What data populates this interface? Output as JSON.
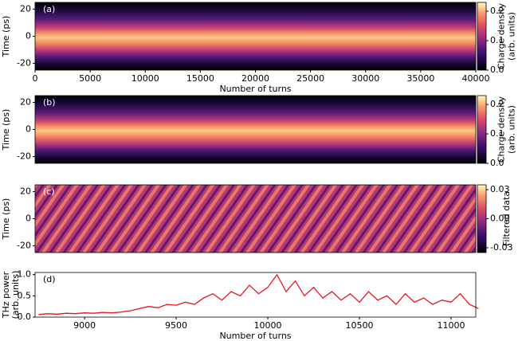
{
  "chart_data": [
    {
      "type": "heatmap",
      "panel_label": "(a)",
      "xlabel": "Number of turns",
      "ylabel": [
        "Time (ps)"
      ],
      "xlim": [
        0,
        40000
      ],
      "xticks": [
        0,
        5000,
        10000,
        15000,
        20000,
        25000,
        30000,
        35000,
        40000
      ],
      "ylim": [
        -25,
        25
      ],
      "yticks": [
        -20,
        0,
        20
      ],
      "colorbar": {
        "label": [
          "Charge density",
          "(arb. units)"
        ],
        "lim": [
          0,
          0.23
        ],
        "ticks": [
          {
            "value": 0,
            "label": "0.0"
          },
          0.1,
          0.2
        ]
      }
    },
    {
      "type": "heatmap",
      "panel_label": "(b)",
      "ylabel": [
        "Time (ps)"
      ],
      "ylim": [
        -25,
        25
      ],
      "yticks": [
        -20,
        0,
        20
      ],
      "colorbar": {
        "label": [
          "Charge density",
          "(arb. units)"
        ],
        "lim": [
          0,
          0.23
        ],
        "ticks": [
          {
            "value": 0,
            "label": "0.0"
          },
          0.1,
          0.2
        ]
      }
    },
    {
      "type": "heatmap",
      "panel_label": "(c)",
      "ylabel": [
        "Time (ps)"
      ],
      "ylim": [
        -25,
        25
      ],
      "yticks": [
        -20,
        0,
        20
      ],
      "colorbar": {
        "label": [
          "Filtered data"
        ],
        "lim": [
          -0.035,
          0.035
        ],
        "ticks": [
          -0.03,
          {
            "value": 0,
            "label": "0.00"
          },
          0.03
        ]
      }
    },
    {
      "type": "line",
      "panel_label": "(d)",
      "xlabel": "Number of turns",
      "ylabel": [
        "THz power",
        "(arb. units)"
      ],
      "xlim": [
        8730,
        11135
      ],
      "xticks": [
        9000,
        9500,
        10000,
        10500,
        11000
      ],
      "ylim": [
        0,
        1.05
      ],
      "yticks": [
        {
          "value": 0,
          "label": "0.0"
        },
        {
          "value": 0.5,
          "label": "0.5"
        },
        {
          "value": 1,
          "label": "1.0"
        }
      ],
      "color": "#e8141a",
      "x": [
        8750,
        8800,
        8850,
        8900,
        8950,
        9000,
        9050,
        9100,
        9150,
        9200,
        9250,
        9300,
        9350,
        9400,
        9450,
        9500,
        9550,
        9600,
        9650,
        9700,
        9750,
        9800,
        9850,
        9900,
        9950,
        10000,
        10050,
        10100,
        10150,
        10200,
        10250,
        10300,
        10350,
        10400,
        10450,
        10500,
        10550,
        10600,
        10650,
        10700,
        10750,
        10800,
        10850,
        10900,
        10950,
        11000,
        11050,
        11100,
        11150
      ],
      "values": [
        0.06,
        0.08,
        0.07,
        0.09,
        0.08,
        0.1,
        0.09,
        0.11,
        0.1,
        0.12,
        0.15,
        0.2,
        0.25,
        0.22,
        0.3,
        0.28,
        0.35,
        0.3,
        0.45,
        0.55,
        0.4,
        0.6,
        0.5,
        0.75,
        0.55,
        0.7,
        1.0,
        0.6,
        0.85,
        0.5,
        0.7,
        0.45,
        0.6,
        0.4,
        0.55,
        0.35,
        0.6,
        0.4,
        0.5,
        0.3,
        0.55,
        0.35,
        0.45,
        0.3,
        0.4,
        0.35,
        0.55,
        0.3,
        0.2
      ]
    }
  ]
}
